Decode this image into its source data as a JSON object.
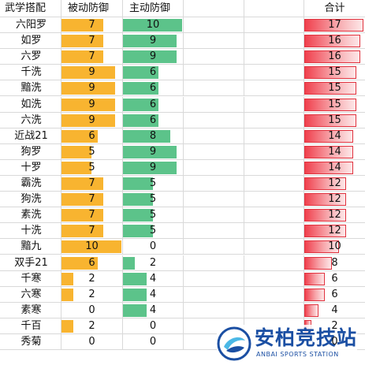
{
  "headers": {
    "name": "武学搭配",
    "passive": "被动防御",
    "active": "主动防御",
    "total": "合计"
  },
  "scale_max": {
    "passive": 10,
    "active": 10,
    "total": 17
  },
  "colors": {
    "passive_bar": "#f8b430",
    "active_bar": "#5cc38a",
    "total_bar": "#f0404d",
    "grid": "#d9d9d9"
  },
  "rows": [
    {
      "name": "六阳罗",
      "passive": 7,
      "active": 10,
      "total": 17
    },
    {
      "name": "如罗",
      "passive": 7,
      "active": 9,
      "total": 16
    },
    {
      "name": "六罗",
      "passive": 7,
      "active": 9,
      "total": 16
    },
    {
      "name": "千洗",
      "passive": 9,
      "active": 6,
      "total": 15
    },
    {
      "name": "黯洗",
      "passive": 9,
      "active": 6,
      "total": 15
    },
    {
      "name": "如洗",
      "passive": 9,
      "active": 6,
      "total": 15
    },
    {
      "name": "六洗",
      "passive": 9,
      "active": 6,
      "total": 15
    },
    {
      "name": "近战21",
      "passive": 6,
      "active": 8,
      "total": 14
    },
    {
      "name": "狗罗",
      "passive": 5,
      "active": 9,
      "total": 14
    },
    {
      "name": "十罗",
      "passive": 5,
      "active": 9,
      "total": 14
    },
    {
      "name": "霸洗",
      "passive": 7,
      "active": 5,
      "total": 12
    },
    {
      "name": "狗洗",
      "passive": 7,
      "active": 5,
      "total": 12
    },
    {
      "name": "素洗",
      "passive": 7,
      "active": 5,
      "total": 12
    },
    {
      "name": "十洗",
      "passive": 7,
      "active": 5,
      "total": 12
    },
    {
      "name": "黯九",
      "passive": 10,
      "active": 0,
      "total": 10
    },
    {
      "name": "双手21",
      "passive": 6,
      "active": 2,
      "total": 8
    },
    {
      "name": "千寒",
      "passive": 2,
      "active": 4,
      "total": 6
    },
    {
      "name": "六寒",
      "passive": 2,
      "active": 4,
      "total": 6
    },
    {
      "name": "素寒",
      "passive": 0,
      "active": 4,
      "total": 4
    },
    {
      "name": "千百",
      "passive": 2,
      "active": 0,
      "total": 2
    },
    {
      "name": "秀菊",
      "passive": 0,
      "active": 0,
      "total": 0
    }
  ],
  "watermark": {
    "title": "安柏竞技站",
    "subtitle": "ANBAI SPORTS STATION"
  }
}
